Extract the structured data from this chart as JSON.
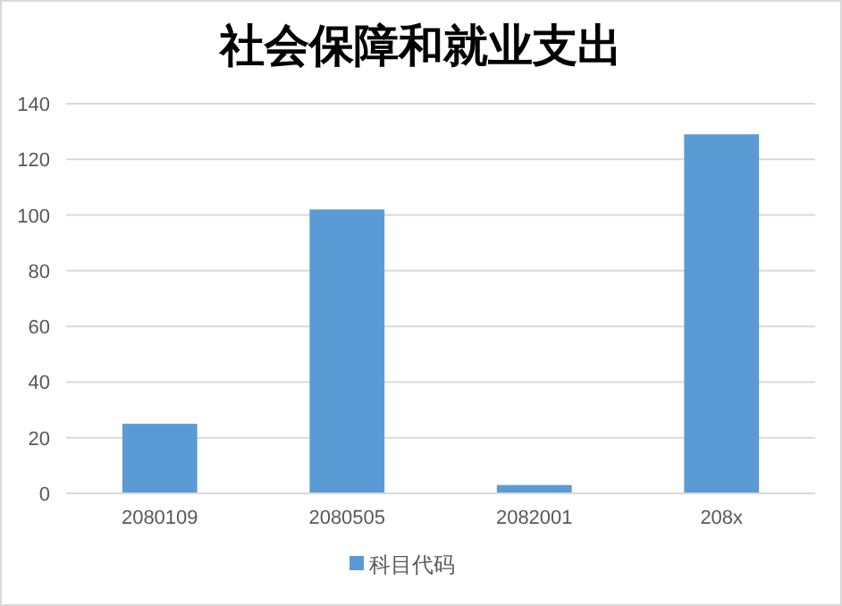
{
  "chart_data": {
    "type": "bar",
    "title": "社会保障和就业支出",
    "categories": [
      "2080109",
      "2080505",
      "2082001",
      "208x"
    ],
    "series": [
      {
        "name": "科目代码",
        "color": "#5b9bd5",
        "values": [
          25,
          102,
          3,
          129
        ]
      }
    ],
    "ylim": [
      0,
      140
    ],
    "yticks": [
      0,
      20,
      40,
      60,
      80,
      100,
      120,
      140
    ],
    "grid": "y",
    "legend": "bottom"
  }
}
